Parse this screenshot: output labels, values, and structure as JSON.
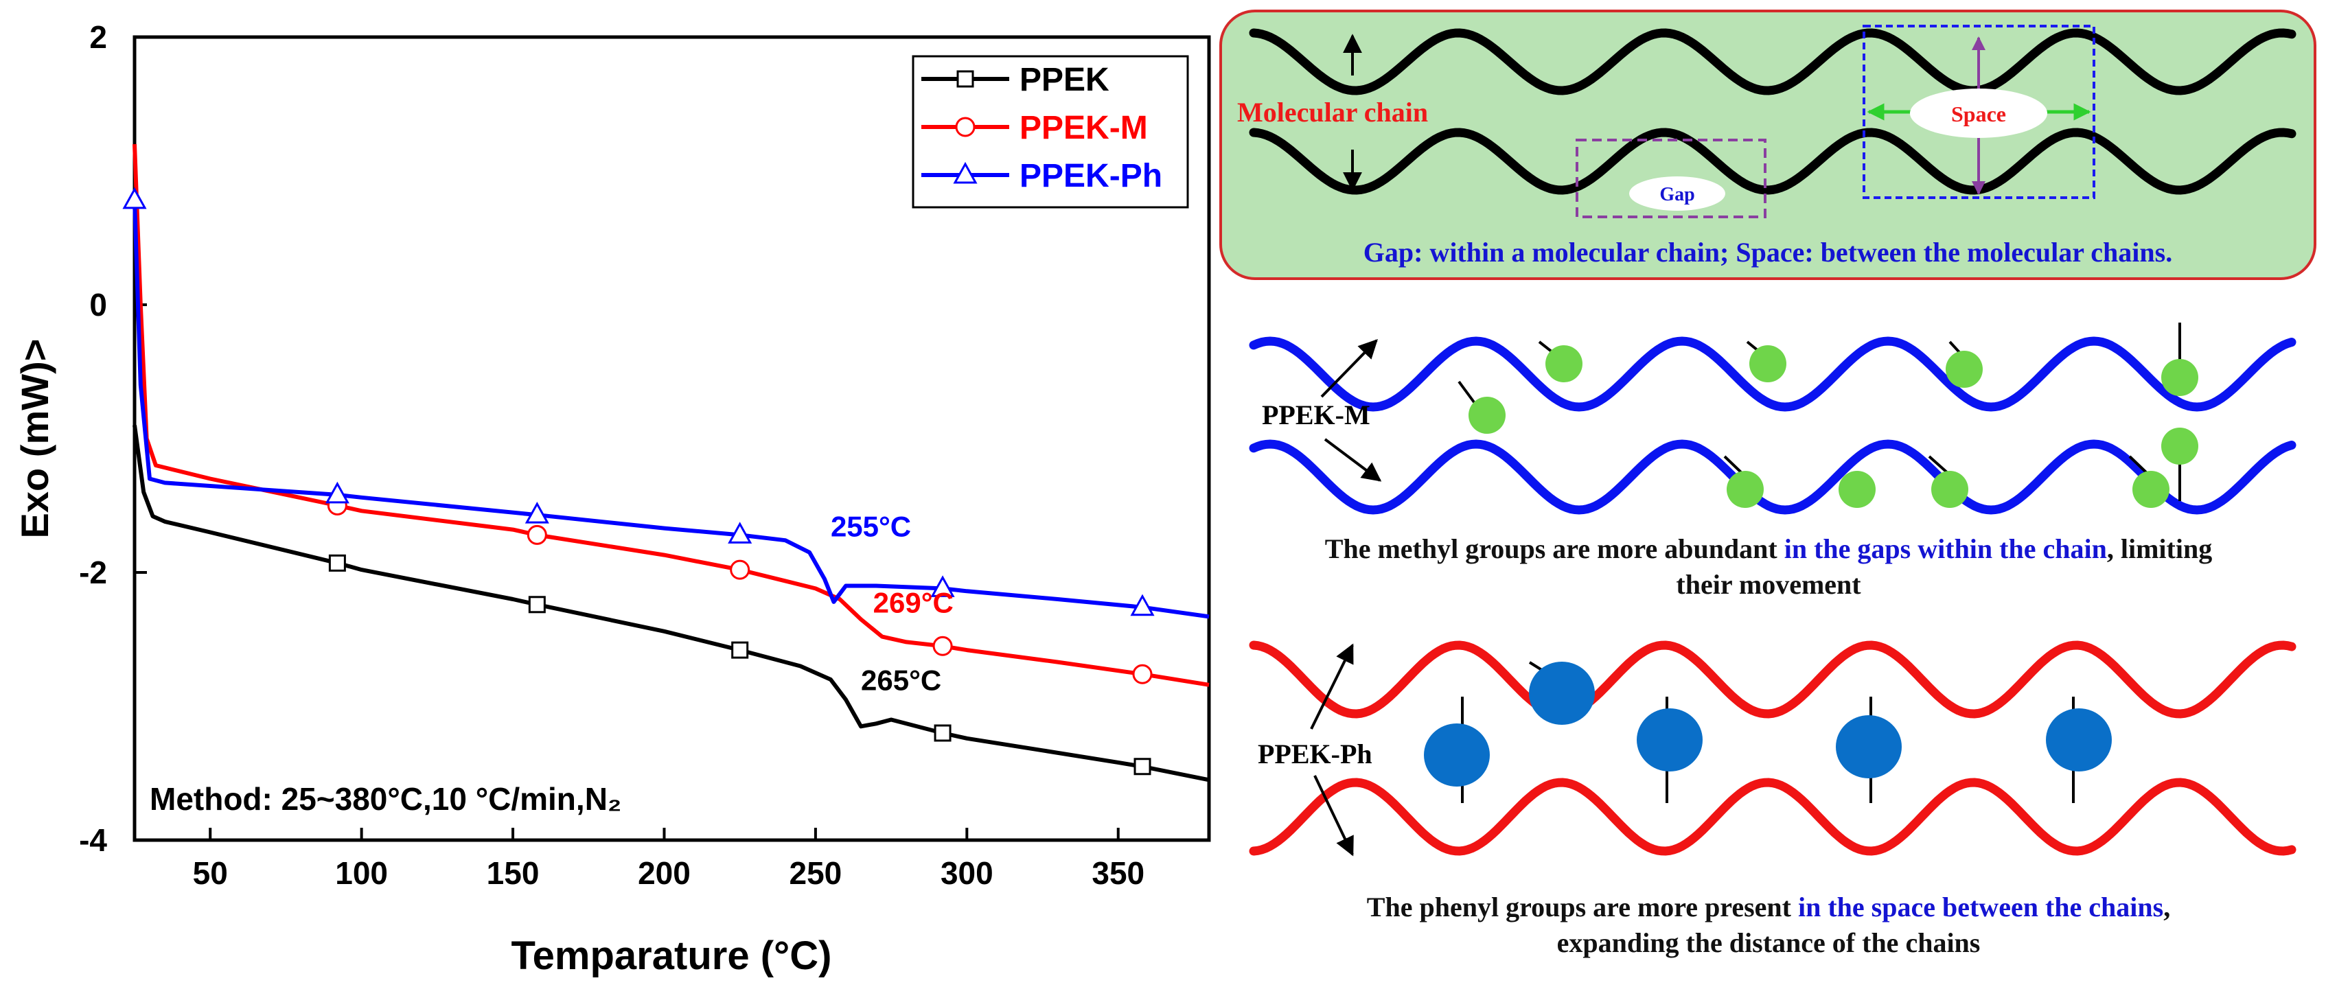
{
  "chart_data": {
    "type": "line",
    "xlabel": "Temparature",
    "xlabel_unit": "(°C)",
    "ylabel": "Exo (mW)>",
    "xlim": [
      25,
      380
    ],
    "ylim": [
      -4,
      2
    ],
    "x_ticks": [
      "50",
      "100",
      "150",
      "200",
      "250",
      "300",
      "350"
    ],
    "y_ticks": [
      "2",
      "0",
      "-2",
      "-4"
    ],
    "grid": false,
    "legend_position": "top-right",
    "method_note": "Method: 25~380°C,10 °C/min,N₂",
    "series": [
      {
        "name": "PPEK",
        "color": "#000000",
        "marker": "square",
        "points": [
          [
            25,
            -0.9
          ],
          [
            28,
            -1.4
          ],
          [
            31,
            -1.58
          ],
          [
            35,
            -1.62
          ],
          [
            50,
            -1.7
          ],
          [
            92,
            -1.93
          ],
          [
            100,
            -1.98
          ],
          [
            150,
            -2.2
          ],
          [
            158,
            -2.24
          ],
          [
            200,
            -2.44
          ],
          [
            225,
            -2.58
          ],
          [
            245,
            -2.7
          ],
          [
            255,
            -2.8
          ],
          [
            260,
            -2.95
          ],
          [
            265,
            -3.15
          ],
          [
            270,
            -3.13
          ],
          [
            275,
            -3.1
          ],
          [
            292,
            -3.2
          ],
          [
            300,
            -3.24
          ],
          [
            325,
            -3.33
          ],
          [
            350,
            -3.42
          ],
          [
            358,
            -3.45
          ],
          [
            380,
            -3.55
          ]
        ],
        "marker_x": [
          92,
          158,
          225,
          292,
          358
        ],
        "annotation": {
          "text": "265°C",
          "x": 265,
          "y": -2.88
        }
      },
      {
        "name": "PPEK-M",
        "color": "#ff0000",
        "marker": "circle",
        "points": [
          [
            25,
            1.2
          ],
          [
            27,
            0.0
          ],
          [
            29,
            -1.0
          ],
          [
            32,
            -1.2
          ],
          [
            50,
            -1.3
          ],
          [
            92,
            -1.5
          ],
          [
            100,
            -1.54
          ],
          [
            150,
            -1.68
          ],
          [
            158,
            -1.72
          ],
          [
            200,
            -1.87
          ],
          [
            225,
            -1.98
          ],
          [
            250,
            -2.12
          ],
          [
            258,
            -2.2
          ],
          [
            265,
            -2.35
          ],
          [
            272,
            -2.48
          ],
          [
            280,
            -2.52
          ],
          [
            292,
            -2.55
          ],
          [
            300,
            -2.58
          ],
          [
            330,
            -2.67
          ],
          [
            358,
            -2.76
          ],
          [
            380,
            -2.84
          ]
        ],
        "marker_x": [
          92,
          158,
          225,
          292,
          358
        ],
        "annotation": {
          "text": "269°C",
          "x": 269,
          "y": -2.3
        }
      },
      {
        "name": "PPEK-Ph",
        "color": "#0000ff",
        "marker": "triangle",
        "points": [
          [
            25,
            0.78
          ],
          [
            27,
            -0.6
          ],
          [
            30,
            -1.3
          ],
          [
            35,
            -1.33
          ],
          [
            92,
            -1.42
          ],
          [
            100,
            -1.44
          ],
          [
            158,
            -1.57
          ],
          [
            200,
            -1.67
          ],
          [
            225,
            -1.72
          ],
          [
            240,
            -1.76
          ],
          [
            248,
            -1.85
          ],
          [
            253,
            -2.05
          ],
          [
            256,
            -2.22
          ],
          [
            260,
            -2.1
          ],
          [
            270,
            -2.1
          ],
          [
            292,
            -2.12
          ],
          [
            300,
            -2.14
          ],
          [
            330,
            -2.2
          ],
          [
            358,
            -2.26
          ],
          [
            380,
            -2.33
          ]
        ],
        "marker_x": [
          25,
          92,
          158,
          225,
          292,
          358
        ],
        "annotation": {
          "text": "255°C",
          "x": 255,
          "y": -1.73
        }
      }
    ]
  },
  "diagram": {
    "top_panel": {
      "molecular_chain_label": "Molecular chain",
      "space_label": "Space",
      "gap_label": "Gap",
      "caption": "Gap: within a molecular chain; Space: between the molecular chains."
    },
    "middle_panel": {
      "label": "PPEK-M",
      "caption_part1": "The methyl groups are more abundant ",
      "caption_highlight": "in the gaps within the chain",
      "caption_part2": ", limiting",
      "caption_line2": "their movement"
    },
    "bottom_panel": {
      "label": "PPEK-Ph",
      "caption_part1": "The phenyl groups are more present ",
      "caption_highlight": "in the space between the chains",
      "caption_part2": ",",
      "caption_line2": "expanding the distance of the chains"
    },
    "colors": {
      "panel_bg": "#b9e3b4",
      "panel_border": "#d42a2a",
      "methyl_chain": "#0a14f0",
      "methyl_group": "#6fd54a",
      "phenyl_chain": "#f01414",
      "phenyl_group": "#0a6fc8",
      "gap_box": "#8a3fa0",
      "space_box": "#1a1af0",
      "space_arrow": "#2fd02f"
    }
  }
}
